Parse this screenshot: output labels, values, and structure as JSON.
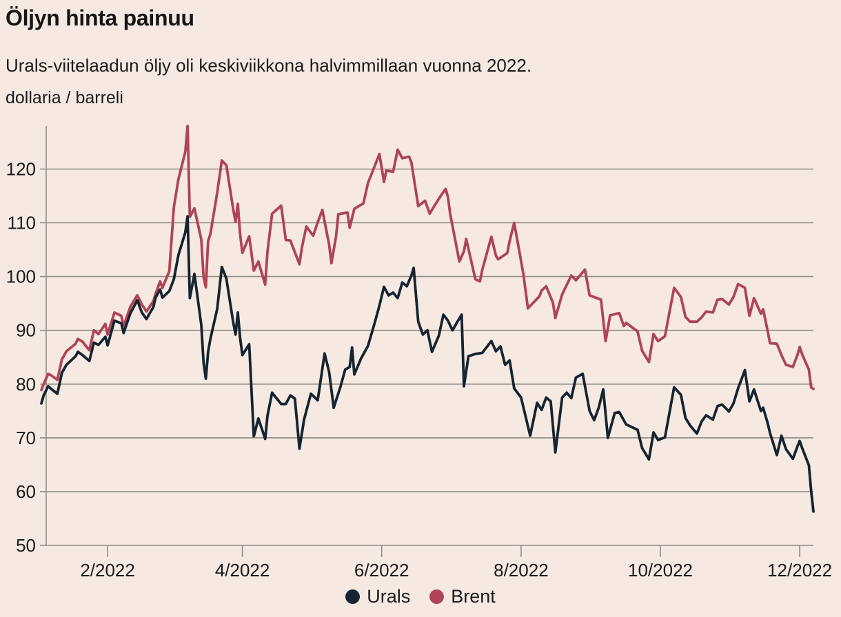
{
  "chart_data": {
    "type": "line",
    "title": "Öljyn hinta painuu",
    "subtitle": "Urals-viitelaadun öljy oli keskiviikkona halvimmillaan vuonna 2022.",
    "unit_label": "dollaria / barreli",
    "grid": true,
    "legend_position": "bottom-center",
    "colors": {
      "background": "#f5e9e2",
      "grid": "#908b85",
      "text": "#1a1a1a",
      "urals": "#152430",
      "brent": "#ae4457"
    },
    "x_axis": {
      "domain_days": [
        3,
        341
      ],
      "ticks": [
        {
          "label": "2/2022",
          "day": 32
        },
        {
          "label": "4/2022",
          "day": 91
        },
        {
          "label": "6/2022",
          "day": 152
        },
        {
          "label": "8/2022",
          "day": 213
        },
        {
          "label": "10/2022",
          "day": 274
        },
        {
          "label": "12/2022",
          "day": 335
        }
      ]
    },
    "y_axis": {
      "min": 50,
      "max": 128,
      "ticks": [
        50,
        60,
        70,
        80,
        90,
        100,
        110,
        120
      ]
    },
    "series": [
      {
        "name": "Urals",
        "color": "#152430",
        "points": [
          [
            3,
            76.4
          ],
          [
            4,
            77.9
          ],
          [
            6,
            79.6
          ],
          [
            7,
            79.2
          ],
          [
            10,
            78.2
          ],
          [
            12,
            82.1
          ],
          [
            14,
            83.6
          ],
          [
            18,
            85.2
          ],
          [
            19,
            86
          ],
          [
            21,
            85.4
          ],
          [
            24,
            84.3
          ],
          [
            26,
            87.7
          ],
          [
            28,
            87.3
          ],
          [
            31,
            88.8
          ],
          [
            32,
            87.2
          ],
          [
            35,
            91.8
          ],
          [
            38,
            91.3
          ],
          [
            39,
            89.5
          ],
          [
            42,
            93.2
          ],
          [
            45,
            95.6
          ],
          [
            47,
            93.3
          ],
          [
            49,
            92.1
          ],
          [
            52,
            94.3
          ],
          [
            53,
            96.1
          ],
          [
            55,
            97.6
          ],
          [
            56,
            96.1
          ],
          [
            59,
            97.3
          ],
          [
            61,
            99.5
          ],
          [
            63,
            104
          ],
          [
            66,
            108.2
          ],
          [
            67,
            111.2
          ],
          [
            68,
            96
          ],
          [
            70,
            100.5
          ],
          [
            73,
            91
          ],
          [
            74,
            84
          ],
          [
            75,
            81
          ],
          [
            76,
            86
          ],
          [
            77,
            88.4
          ],
          [
            80,
            94
          ],
          [
            82,
            101.8
          ],
          [
            84,
            99.6
          ],
          [
            87,
            91.5
          ],
          [
            88,
            89.2
          ],
          [
            89,
            93.3
          ],
          [
            90,
            88.6
          ],
          [
            91,
            85.4
          ],
          [
            94,
            87.4
          ],
          [
            96,
            70.3
          ],
          [
            98,
            73.6
          ],
          [
            101,
            69.8
          ],
          [
            102,
            74.1
          ],
          [
            104,
            78.4
          ],
          [
            108,
            76.3
          ],
          [
            110,
            76.3
          ],
          [
            112,
            77.9
          ],
          [
            114,
            77.3
          ],
          [
            116,
            68
          ],
          [
            118,
            73.4
          ],
          [
            121,
            78.2
          ],
          [
            124,
            77
          ],
          [
            127,
            85.7
          ],
          [
            129,
            82.2
          ],
          [
            131,
            75.6
          ],
          [
            134,
            79.6
          ],
          [
            136,
            82.7
          ],
          [
            138,
            83.2
          ],
          [
            139,
            86.8
          ],
          [
            140,
            81.8
          ],
          [
            143,
            84.8
          ],
          [
            146,
            87.1
          ],
          [
            149,
            91.5
          ],
          [
            151,
            94.6
          ],
          [
            153,
            98.1
          ],
          [
            155,
            96.5
          ],
          [
            157,
            97
          ],
          [
            159,
            96
          ],
          [
            161,
            98.9
          ],
          [
            163,
            98.2
          ],
          [
            165,
            100.2
          ],
          [
            166,
            101.6
          ],
          [
            168,
            91.6
          ],
          [
            170,
            89.2
          ],
          [
            172,
            90
          ],
          [
            174,
            86
          ],
          [
            177,
            89
          ],
          [
            179,
            92.9
          ],
          [
            181,
            91.8
          ],
          [
            183,
            90
          ],
          [
            185,
            91.5
          ],
          [
            187,
            92.9
          ],
          [
            188,
            79.6
          ],
          [
            190,
            85.2
          ],
          [
            193,
            85.6
          ],
          [
            196,
            85.8
          ],
          [
            200,
            88
          ],
          [
            202,
            86.1
          ],
          [
            204,
            87
          ],
          [
            206,
            83.6
          ],
          [
            208,
            84.4
          ],
          [
            210,
            79.2
          ],
          [
            213,
            77.5
          ],
          [
            217,
            70.4
          ],
          [
            220,
            76.5
          ],
          [
            222,
            75.2
          ],
          [
            224,
            77.5
          ],
          [
            226,
            76.8
          ],
          [
            228,
            67.3
          ],
          [
            231,
            77.5
          ],
          [
            233,
            78.4
          ],
          [
            235,
            77.4
          ],
          [
            237,
            81.2
          ],
          [
            240,
            81.9
          ],
          [
            243,
            75
          ],
          [
            245,
            73.3
          ],
          [
            247,
            75.6
          ],
          [
            249,
            79
          ],
          [
            251,
            70
          ],
          [
            254,
            74.6
          ],
          [
            256,
            74.8
          ],
          [
            259,
            72.5
          ],
          [
            264,
            71.5
          ],
          [
            266,
            68.1
          ],
          [
            269,
            66
          ],
          [
            271,
            71
          ],
          [
            273,
            69.6
          ],
          [
            276,
            70.1
          ],
          [
            278,
            74.7
          ],
          [
            280,
            79.4
          ],
          [
            283,
            78
          ],
          [
            285,
            73.7
          ],
          [
            287,
            72.3
          ],
          [
            290,
            70.8
          ],
          [
            292,
            73
          ],
          [
            294,
            74.2
          ],
          [
            297,
            73.4
          ],
          [
            299,
            75.9
          ],
          [
            301,
            76.2
          ],
          [
            304,
            74.9
          ],
          [
            306,
            76.4
          ],
          [
            308,
            79.2
          ],
          [
            311,
            82.6
          ],
          [
            313,
            76.8
          ],
          [
            315,
            79
          ],
          [
            318,
            75
          ],
          [
            319,
            75.6
          ],
          [
            321,
            72.7
          ],
          [
            322,
            70.9
          ],
          [
            325,
            66.8
          ],
          [
            327,
            70.4
          ],
          [
            329,
            67.9
          ],
          [
            332,
            66.1
          ],
          [
            334,
            68.4
          ],
          [
            335,
            69.4
          ],
          [
            336,
            68.2
          ],
          [
            339,
            64.9
          ],
          [
            340,
            60.1
          ],
          [
            341,
            56.3
          ]
        ]
      },
      {
        "name": "Brent",
        "color": "#ae4457",
        "points": [
          [
            3,
            78.9
          ],
          [
            4,
            80
          ],
          [
            6,
            81.9
          ],
          [
            7,
            81.7
          ],
          [
            10,
            80.8
          ],
          [
            12,
            84.6
          ],
          [
            14,
            86.1
          ],
          [
            18,
            87.5
          ],
          [
            19,
            88.4
          ],
          [
            21,
            87.9
          ],
          [
            24,
            86.3
          ],
          [
            26,
            90
          ],
          [
            28,
            89.3
          ],
          [
            31,
            91.2
          ],
          [
            32,
            89.2
          ],
          [
            35,
            93.3
          ],
          [
            38,
            92.7
          ],
          [
            39,
            90.8
          ],
          [
            42,
            94.4
          ],
          [
            45,
            96.5
          ],
          [
            47,
            94.8
          ],
          [
            49,
            93.5
          ],
          [
            52,
            95.4
          ],
          [
            53,
            96.8
          ],
          [
            55,
            99.1
          ],
          [
            56,
            97.9
          ],
          [
            59,
            101
          ],
          [
            61,
            112.9
          ],
          [
            63,
            118.1
          ],
          [
            66,
            123.2
          ],
          [
            67,
            128
          ],
          [
            68,
            111.1
          ],
          [
            70,
            112.7
          ],
          [
            73,
            106.9
          ],
          [
            74,
            99.9
          ],
          [
            75,
            98
          ],
          [
            76,
            106.6
          ],
          [
            77,
            107.9
          ],
          [
            80,
            115.6
          ],
          [
            82,
            121.6
          ],
          [
            84,
            120.7
          ],
          [
            87,
            112.5
          ],
          [
            88,
            110.2
          ],
          [
            89,
            113.5
          ],
          [
            90,
            107.9
          ],
          [
            91,
            104.4
          ],
          [
            94,
            107.5
          ],
          [
            96,
            101.1
          ],
          [
            98,
            102.8
          ],
          [
            101,
            98.5
          ],
          [
            102,
            104.6
          ],
          [
            104,
            111.7
          ],
          [
            108,
            113.2
          ],
          [
            110,
            106.8
          ],
          [
            112,
            106.7
          ],
          [
            116,
            102.3
          ],
          [
            117,
            105.3
          ],
          [
            119,
            109.3
          ],
          [
            122,
            107.6
          ],
          [
            124,
            110.1
          ],
          [
            126,
            112.4
          ],
          [
            129,
            105.9
          ],
          [
            130,
            102.5
          ],
          [
            132,
            107.5
          ],
          [
            133,
            111.6
          ],
          [
            137,
            111.9
          ],
          [
            138,
            109.1
          ],
          [
            140,
            112.6
          ],
          [
            144,
            113.6
          ],
          [
            146,
            117.4
          ],
          [
            150,
            121.7
          ],
          [
            151,
            122.8
          ],
          [
            153,
            117.6
          ],
          [
            154,
            119.7
          ],
          [
            157,
            119.5
          ],
          [
            159,
            123.6
          ],
          [
            161,
            122
          ],
          [
            164,
            122.3
          ],
          [
            165,
            121.2
          ],
          [
            166,
            118.5
          ],
          [
            168,
            113.1
          ],
          [
            171,
            114.1
          ],
          [
            173,
            111.7
          ],
          [
            175,
            113.1
          ],
          [
            178,
            115.1
          ],
          [
            180,
            116.3
          ],
          [
            181,
            114.8
          ],
          [
            182,
            111.6
          ],
          [
            186,
            102.8
          ],
          [
            188,
            104.7
          ],
          [
            189,
            107
          ],
          [
            193,
            99.5
          ],
          [
            195,
            99.1
          ],
          [
            196,
            101.2
          ],
          [
            200,
            107.4
          ],
          [
            202,
            103.9
          ],
          [
            203,
            103.2
          ],
          [
            207,
            104.4
          ],
          [
            208,
            106.6
          ],
          [
            210,
            110
          ],
          [
            214,
            100.5
          ],
          [
            216,
            94.1
          ],
          [
            221,
            96.3
          ],
          [
            222,
            97.4
          ],
          [
            224,
            98.2
          ],
          [
            227,
            95.1
          ],
          [
            228,
            92.3
          ],
          [
            231,
            96.7
          ],
          [
            235,
            100.2
          ],
          [
            237,
            99.3
          ],
          [
            241,
            101.3
          ],
          [
            243,
            96.5
          ],
          [
            248,
            95.7
          ],
          [
            250,
            88
          ],
          [
            252,
            92.8
          ],
          [
            256,
            93.2
          ],
          [
            258,
            90.8
          ],
          [
            259,
            91.4
          ],
          [
            264,
            89.8
          ],
          [
            266,
            86.2
          ],
          [
            269,
            84.1
          ],
          [
            271,
            89.3
          ],
          [
            273,
            88
          ],
          [
            276,
            88.9
          ],
          [
            278,
            93.4
          ],
          [
            280,
            97.9
          ],
          [
            283,
            96.2
          ],
          [
            285,
            92.5
          ],
          [
            287,
            91.6
          ],
          [
            290,
            91.6
          ],
          [
            292,
            92.4
          ],
          [
            294,
            93.5
          ],
          [
            297,
            93.3
          ],
          [
            299,
            95.7
          ],
          [
            301,
            95.8
          ],
          [
            304,
            94.8
          ],
          [
            306,
            96.2
          ],
          [
            308,
            98.6
          ],
          [
            311,
            97.9
          ],
          [
            313,
            92.7
          ],
          [
            315,
            96
          ],
          [
            318,
            93.1
          ],
          [
            319,
            93.9
          ],
          [
            321,
            89.8
          ],
          [
            322,
            87.6
          ],
          [
            325,
            87.5
          ],
          [
            327,
            85.4
          ],
          [
            329,
            83.6
          ],
          [
            332,
            83.2
          ],
          [
            334,
            85.4
          ],
          [
            335,
            86.9
          ],
          [
            336,
            85.6
          ],
          [
            339,
            82.7
          ],
          [
            340,
            79.4
          ],
          [
            341,
            79.1
          ]
        ]
      }
    ],
    "legend": [
      "Urals",
      "Brent"
    ]
  }
}
